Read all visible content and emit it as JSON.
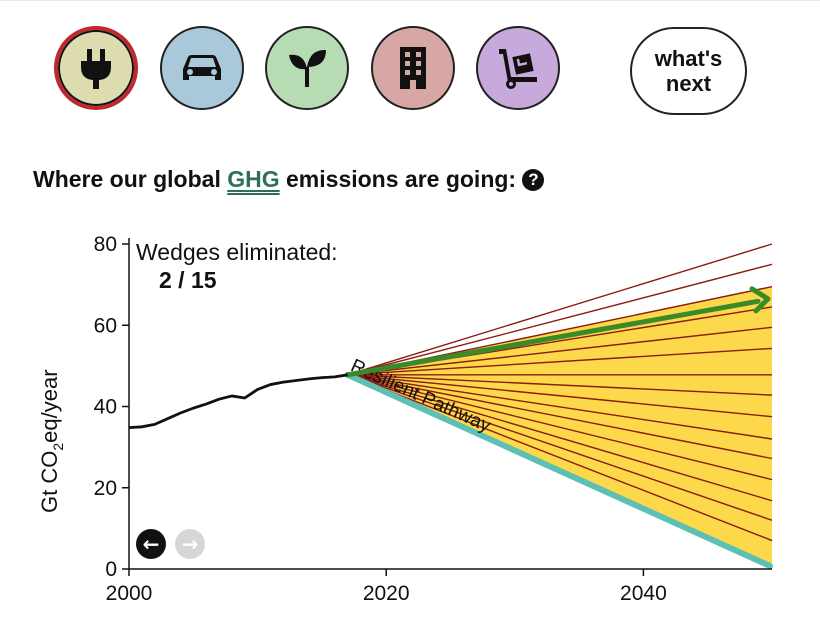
{
  "nav": {
    "sectors": [
      {
        "name": "electricity",
        "icon": "plug-icon",
        "color": "#dcdcb0",
        "selected": true
      },
      {
        "name": "transportation",
        "icon": "car-icon",
        "color": "#a9c9da",
        "selected": false
      },
      {
        "name": "agriculture",
        "icon": "sprout-icon",
        "color": "#b7dcb4",
        "selected": false
      },
      {
        "name": "buildings",
        "icon": "building-icon",
        "color": "#d7a7a6",
        "selected": false
      },
      {
        "name": "industry",
        "icon": "hand-truck-icon",
        "color": "#c8a9db",
        "selected": false
      }
    ],
    "next_label": "what's\nnext"
  },
  "heading": {
    "prefix": "Where our global ",
    "link": "GHG",
    "suffix": " emissions are going:",
    "help_glyph": "?"
  },
  "wedges": {
    "label": "Wedges eliminated:",
    "count": "2 / 15"
  },
  "colors": {
    "wedge_fill": "#fcd84a",
    "wedge_line": "#8b1c10",
    "bau_arrow": "#3a8a2a",
    "pathway": "#5cc0b4",
    "history": "#111111"
  },
  "chart_data": {
    "type": "line",
    "ylabel_main": "Gt CO",
    "ylabel_sub": "2",
    "ylabel_tail": "eq/year",
    "xlim": [
      2000,
      2050
    ],
    "ylim": [
      0,
      80
    ],
    "x_ticks": [
      2000,
      2020,
      2040
    ],
    "y_ticks": [
      0,
      20,
      40,
      60,
      80
    ],
    "history": {
      "x": [
        2000,
        2001,
        2002,
        2003,
        2004,
        2005,
        2006,
        2007,
        2008,
        2009,
        2010,
        2011,
        2012,
        2013,
        2014,
        2015,
        2016,
        2017
      ],
      "y": [
        34.8,
        35.0,
        35.6,
        37.0,
        38.4,
        39.6,
        40.6,
        41.8,
        42.6,
        42.1,
        44.2,
        45.4,
        46.0,
        46.4,
        46.8,
        47.1,
        47.3,
        47.8
      ]
    },
    "wedge_origin": {
      "x": 2017,
      "y": 47.8
    },
    "wedge_end_x": 2050,
    "eliminated_wedge_ends": [
      80,
      75
    ],
    "bau_end": 66.5,
    "remaining_wedge_ends": [
      69.5,
      64.5,
      59.5,
      54.3,
      47.8,
      42.8,
      37.5,
      32.0,
      27.2,
      22.0,
      16.8,
      12.0,
      7.0
    ],
    "pathway_end": 0,
    "pathway_label": "Resilient Pathway",
    "nav_prev_glyph": "←",
    "nav_next_glyph": "→"
  }
}
